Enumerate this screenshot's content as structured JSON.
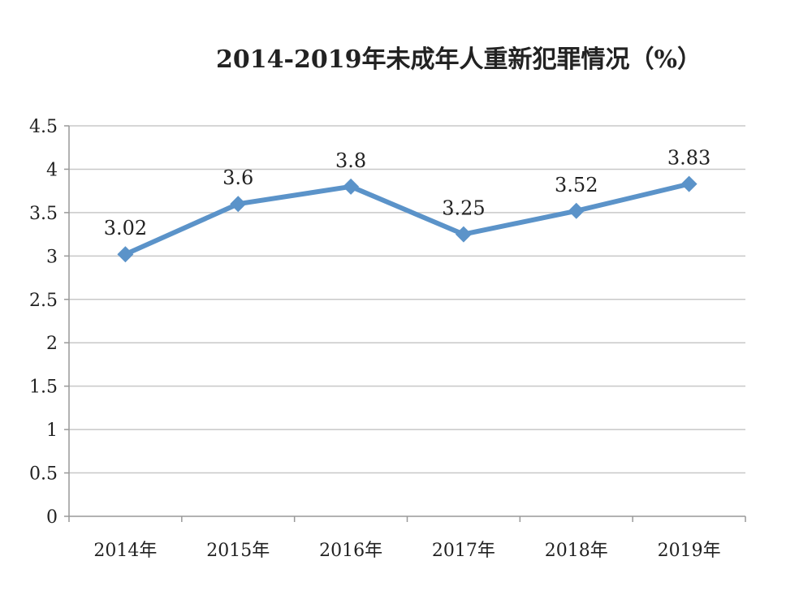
{
  "chart_data": {
    "type": "line",
    "title": "2014-2019年未成年人重新犯罪情况（%）",
    "categories": [
      "2014年",
      "2015年",
      "2016年",
      "2017年",
      "2018年",
      "2019年"
    ],
    "series": [
      {
        "values": [
          3.02,
          3.6,
          3.8,
          3.25,
          3.52,
          3.83
        ],
        "color": "#5b93c9"
      }
    ],
    "data_labels": [
      "3.02",
      "3.6",
      "3.8",
      "3.25",
      "3.52",
      "3.83"
    ],
    "ylim": [
      0,
      4.5
    ],
    "yticks": [
      0,
      0.5,
      1,
      1.5,
      2,
      2.5,
      3,
      3.5,
      4,
      4.5
    ],
    "ytick_labels": [
      "0",
      "0.5",
      "1",
      "1.5",
      "2",
      "2.5",
      "3",
      "3.5",
      "4",
      "4.5"
    ],
    "grid": true,
    "gridline_color": "#c8c8c8",
    "axis_color": "#999999",
    "marker": "diamond"
  }
}
